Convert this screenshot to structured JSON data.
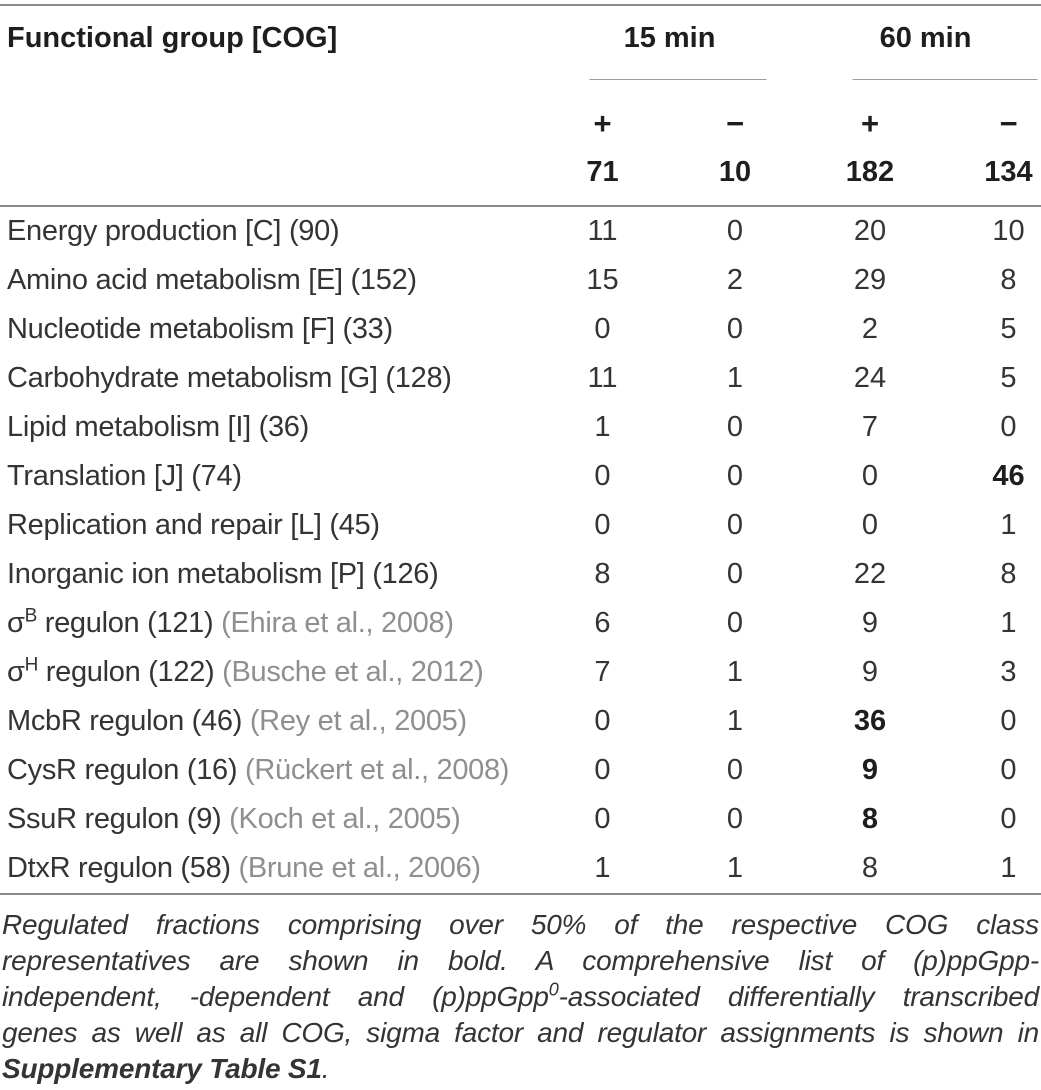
{
  "colors": {
    "text": "#343434",
    "text_bold": "#1e1e1e",
    "citation": "#8f8f8f",
    "rule": "#8a8a8a",
    "subrule": "#9c9c9c",
    "background": "#ffffff"
  },
  "table": {
    "header": {
      "col0": "Functional group [COG]",
      "group_15": "15 min",
      "group_60": "60 min",
      "plus": "+",
      "minus": "−",
      "totals": [
        "71",
        "10",
        "182",
        "134"
      ]
    },
    "rows": [
      {
        "label": "Energy production [C] (90)",
        "values": [
          "11",
          "0",
          "20",
          "10"
        ]
      },
      {
        "label": "Amino acid metabolism [E] (152)",
        "values": [
          "15",
          "2",
          "29",
          "8"
        ]
      },
      {
        "label": "Nucleotide metabolism [F] (33)",
        "values": [
          "0",
          "0",
          "2",
          "5"
        ]
      },
      {
        "label": "Carbohydrate metabolism [G] (128)",
        "values": [
          "11",
          "1",
          "24",
          "5"
        ]
      },
      {
        "label": "Lipid metabolism [I] (36)",
        "values": [
          "1",
          "0",
          "7",
          "0"
        ]
      },
      {
        "label": "Translation [J] (74)",
        "values": [
          "0",
          "0",
          "0",
          "46"
        ]
      },
      {
        "label": "Replication and repair [L] (45)",
        "values": [
          "0",
          "0",
          "0",
          "1"
        ]
      },
      {
        "label": "Inorganic ion metabolism [P] (126)",
        "values": [
          "8",
          "0",
          "22",
          "8"
        ]
      },
      {
        "pre": "σ",
        "sup": "B",
        "mid": " regulon (121) ",
        "cite": "(Ehira et al., 2008)",
        "values": [
          "6",
          "0",
          "9",
          "1"
        ]
      },
      {
        "pre": "σ",
        "sup": "H",
        "mid": " regulon (122) ",
        "cite": "(Busche et al., 2012)",
        "values": [
          "7",
          "1",
          "9",
          "3"
        ]
      },
      {
        "label": "McbR regulon (46) ",
        "cite": "(Rey et al., 2005)",
        "values": [
          "0",
          "1",
          "36",
          "0"
        ]
      },
      {
        "label": "CysR regulon (16) ",
        "cite": "(Rückert et al., 2008)",
        "values": [
          "0",
          "0",
          "9",
          "0"
        ]
      },
      {
        "label": "SsuR regulon (9) ",
        "cite": "(Koch et al., 2005)",
        "values": [
          "0",
          "0",
          "8",
          "0"
        ]
      },
      {
        "label": "DtxR regulon (58) ",
        "cite": "(Brune et al., 2006)",
        "values": [
          "1",
          "1",
          "8",
          "1"
        ]
      }
    ]
  },
  "footnote": {
    "line1": "Regulated fractions comprising over 50% of the respective COG class",
    "line2": "representatives are shown in bold. A comprehensive list of (p)ppGpp-",
    "line3_pre": "independent, -dependent and (p)ppGpp",
    "line3_sup": "0",
    "line3_post": "-associated differentially transcribed",
    "line4": "genes as well as all COG, sigma factor and regulator assignments is shown in",
    "line5_bold": "Supplementary Table S1",
    "line5_end": "."
  }
}
